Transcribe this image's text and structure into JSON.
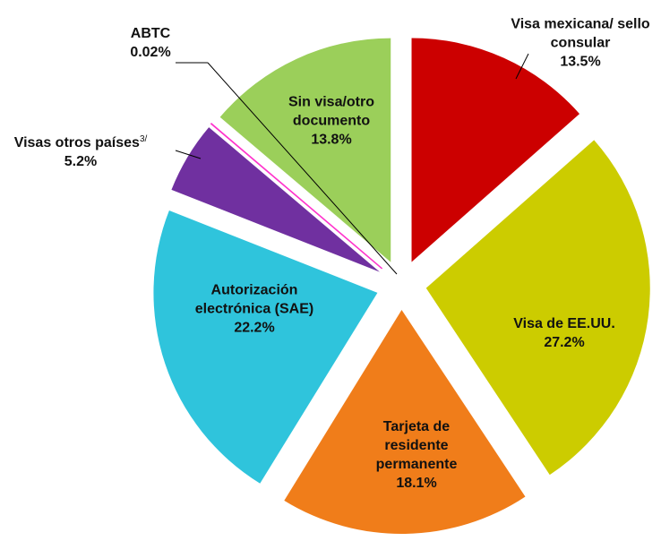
{
  "chart_data": {
    "type": "pie",
    "categories": [
      "Visa mexicana/ sello consular",
      "Visa de EE.UU.",
      "Tarjeta de residente permanente",
      "Autorización electrónica (SAE)",
      "Visas otros países",
      "ABTC",
      "Sin visa/otro documento"
    ],
    "category_notes": [
      null,
      null,
      null,
      null,
      "3/",
      null,
      null
    ],
    "values": [
      13.5,
      27.2,
      18.1,
      22.2,
      5.2,
      0.02,
      13.8
    ],
    "value_labels": [
      "13.5%",
      "27.2%",
      "18.1%",
      "22.2%",
      "5.2%",
      "0.02%",
      "13.8%"
    ],
    "colors": [
      "#cc0000",
      "#cccc00",
      "#f07d1a",
      "#2fc4dc",
      "#7030a0",
      "#ff33cc",
      "#9bcf5a"
    ]
  }
}
